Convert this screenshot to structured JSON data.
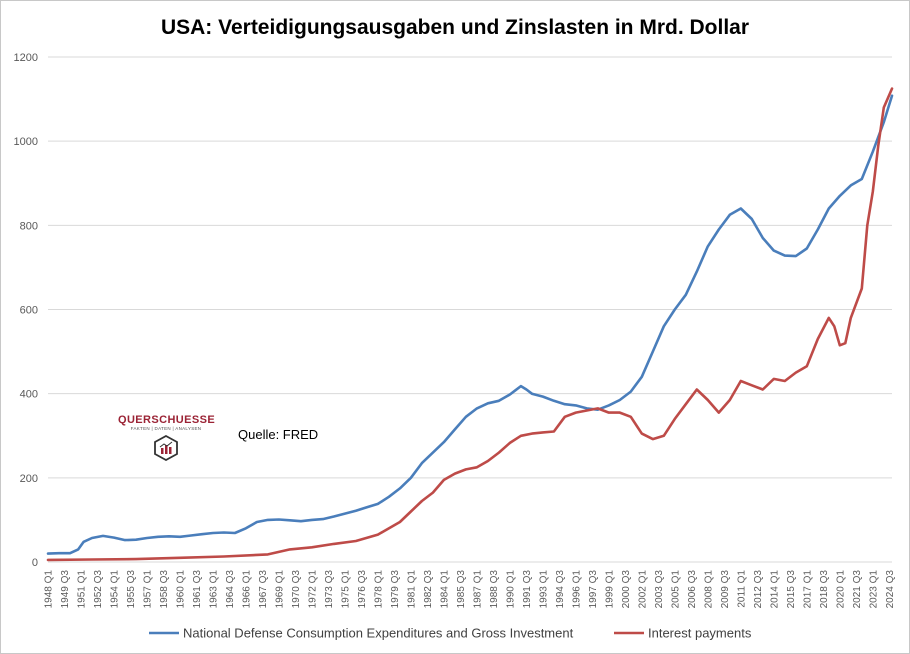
{
  "chart_data": {
    "type": "line",
    "title": "USA: Verteidigungsausgaben und Zinslasten in Mrd. Dollar",
    "source_label": "Quelle: FRED",
    "brand": {
      "name": "QUERSCHUESSE",
      "tagline": "FAKTEN | DATEN | ANALYSEN"
    },
    "ylim": [
      0,
      1200
    ],
    "yticks": [
      0,
      200,
      400,
      600,
      800,
      1000,
      1200
    ],
    "grid": true,
    "legend_position": "bottom",
    "xlim": [
      1948.0,
      2024.75
    ],
    "x_tick_labels": [
      "1948 Q1",
      "1949 Q3",
      "1951 Q1",
      "1952 Q3",
      "1954 Q1",
      "1955 Q3",
      "1957 Q1",
      "1958 Q3",
      "1960 Q1",
      "1961 Q3",
      "1963 Q1",
      "1964 Q3",
      "1966 Q1",
      "1967 Q3",
      "1969 Q1",
      "1970 Q3",
      "1972 Q1",
      "1973 Q3",
      "1975 Q1",
      "1976 Q3",
      "1978 Q1",
      "1979 Q3",
      "1981 Q1",
      "1982 Q3",
      "1984 Q1",
      "1985 Q3",
      "1987 Q1",
      "1988 Q3",
      "1990 Q1",
      "1991 Q3",
      "1993 Q1",
      "1994 Q3",
      "1996 Q1",
      "1997 Q3",
      "1999 Q1",
      "2000 Q3",
      "2002 Q1",
      "2003 Q3",
      "2005 Q1",
      "2006 Q3",
      "2008 Q1",
      "2009 Q3",
      "2011 Q1",
      "2012 Q3",
      "2014 Q1",
      "2015 Q3",
      "2017 Q1",
      "2018 Q3",
      "2020 Q1",
      "2021 Q3",
      "2023 Q1",
      "2024 Q3"
    ],
    "series": [
      {
        "name": "National Defense Consumption Expenditures and Gross Investment",
        "color": "#4a7ebb",
        "points": [
          [
            1948.0,
            20
          ],
          [
            1949.0,
            21
          ],
          [
            1950.0,
            21
          ],
          [
            1950.75,
            30
          ],
          [
            1951.25,
            48
          ],
          [
            1952.0,
            57
          ],
          [
            1953.0,
            62
          ],
          [
            1954.0,
            58
          ],
          [
            1955.0,
            52
          ],
          [
            1956.0,
            53
          ],
          [
            1957.0,
            57
          ],
          [
            1958.0,
            60
          ],
          [
            1959.0,
            61
          ],
          [
            1960.0,
            60
          ],
          [
            1961.0,
            63
          ],
          [
            1962.0,
            66
          ],
          [
            1963.0,
            69
          ],
          [
            1964.0,
            70
          ],
          [
            1965.0,
            69
          ],
          [
            1966.0,
            80
          ],
          [
            1967.0,
            95
          ],
          [
            1968.0,
            100
          ],
          [
            1969.0,
            101
          ],
          [
            1970.0,
            99
          ],
          [
            1971.0,
            97
          ],
          [
            1972.0,
            100
          ],
          [
            1973.0,
            102
          ],
          [
            1974.0,
            108
          ],
          [
            1975.0,
            115
          ],
          [
            1976.0,
            122
          ],
          [
            1977.0,
            130
          ],
          [
            1978.0,
            138
          ],
          [
            1979.0,
            155
          ],
          [
            1980.0,
            175
          ],
          [
            1981.0,
            200
          ],
          [
            1982.0,
            235
          ],
          [
            1983.0,
            260
          ],
          [
            1984.0,
            285
          ],
          [
            1985.0,
            315
          ],
          [
            1986.0,
            345
          ],
          [
            1987.0,
            365
          ],
          [
            1988.0,
            377
          ],
          [
            1989.0,
            383
          ],
          [
            1990.0,
            398
          ],
          [
            1990.5,
            408
          ],
          [
            1991.0,
            418
          ],
          [
            1991.5,
            410
          ],
          [
            1992.0,
            400
          ],
          [
            1993.0,
            393
          ],
          [
            1994.0,
            383
          ],
          [
            1995.0,
            375
          ],
          [
            1996.0,
            372
          ],
          [
            1997.0,
            365
          ],
          [
            1998.0,
            362
          ],
          [
            1999.0,
            372
          ],
          [
            2000.0,
            385
          ],
          [
            2001.0,
            405
          ],
          [
            2002.0,
            440
          ],
          [
            2003.0,
            500
          ],
          [
            2004.0,
            560
          ],
          [
            2005.0,
            600
          ],
          [
            2006.0,
            635
          ],
          [
            2007.0,
            690
          ],
          [
            2008.0,
            750
          ],
          [
            2009.0,
            790
          ],
          [
            2010.0,
            825
          ],
          [
            2011.0,
            840
          ],
          [
            2012.0,
            815
          ],
          [
            2013.0,
            770
          ],
          [
            2014.0,
            740
          ],
          [
            2015.0,
            728
          ],
          [
            2016.0,
            727
          ],
          [
            2017.0,
            745
          ],
          [
            2018.0,
            790
          ],
          [
            2019.0,
            840
          ],
          [
            2020.0,
            870
          ],
          [
            2021.0,
            895
          ],
          [
            2022.0,
            910
          ],
          [
            2023.0,
            975
          ],
          [
            2024.0,
            1045
          ],
          [
            2024.75,
            1108
          ]
        ]
      },
      {
        "name": "Interest payments",
        "color": "#be4b48",
        "points": [
          [
            1948.0,
            5
          ],
          [
            1952.0,
            6
          ],
          [
            1956.0,
            7
          ],
          [
            1960.0,
            10
          ],
          [
            1964.0,
            13
          ],
          [
            1968.0,
            18
          ],
          [
            1970.0,
            30
          ],
          [
            1972.0,
            35
          ],
          [
            1974.0,
            43
          ],
          [
            1976.0,
            50
          ],
          [
            1978.0,
            65
          ],
          [
            1980.0,
            95
          ],
          [
            1981.0,
            120
          ],
          [
            1982.0,
            145
          ],
          [
            1983.0,
            165
          ],
          [
            1984.0,
            195
          ],
          [
            1985.0,
            210
          ],
          [
            1986.0,
            220
          ],
          [
            1987.0,
            225
          ],
          [
            1988.0,
            240
          ],
          [
            1989.0,
            260
          ],
          [
            1990.0,
            283
          ],
          [
            1991.0,
            300
          ],
          [
            1992.0,
            305
          ],
          [
            1993.0,
            308
          ],
          [
            1994.0,
            310
          ],
          [
            1995.0,
            345
          ],
          [
            1996.0,
            355
          ],
          [
            1997.0,
            360
          ],
          [
            1998.0,
            365
          ],
          [
            1999.0,
            355
          ],
          [
            2000.0,
            355
          ],
          [
            2001.0,
            345
          ],
          [
            2002.0,
            305
          ],
          [
            2003.0,
            292
          ],
          [
            2004.0,
            300
          ],
          [
            2005.0,
            340
          ],
          [
            2006.0,
            375
          ],
          [
            2007.0,
            410
          ],
          [
            2008.0,
            385
          ],
          [
            2009.0,
            355
          ],
          [
            2010.0,
            385
          ],
          [
            2011.0,
            430
          ],
          [
            2012.0,
            420
          ],
          [
            2013.0,
            410
          ],
          [
            2014.0,
            435
          ],
          [
            2015.0,
            430
          ],
          [
            2016.0,
            450
          ],
          [
            2017.0,
            465
          ],
          [
            2018.0,
            530
          ],
          [
            2019.0,
            580
          ],
          [
            2019.5,
            560
          ],
          [
            2020.0,
            515
          ],
          [
            2020.5,
            520
          ],
          [
            2021.0,
            580
          ],
          [
            2022.0,
            650
          ],
          [
            2022.5,
            800
          ],
          [
            2023.0,
            880
          ],
          [
            2023.5,
            990
          ],
          [
            2024.0,
            1080
          ],
          [
            2024.75,
            1125
          ]
        ]
      }
    ]
  }
}
